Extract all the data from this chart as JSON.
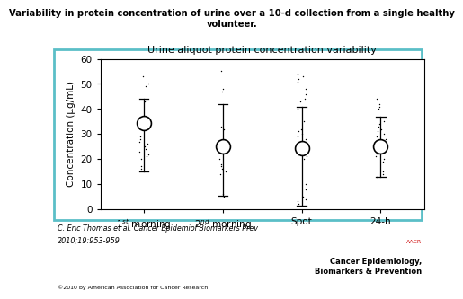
{
  "title": "Variability in protein concentration of urine over a 10-d collection from a single healthy\nvolunteer.",
  "inner_title": "Urine aliquot protein concentration variability",
  "ylabel": "Concentration (μg/mL)",
  "categories": [
    "1$^{st}$ morning",
    "2$^{nd}$ morning",
    "Spot",
    "24-h"
  ],
  "ylim": [
    0,
    60
  ],
  "yticks": [
    0,
    10,
    20,
    30,
    40,
    50,
    60
  ],
  "means": [
    34.5,
    25.0,
    24.5,
    25.0
  ],
  "error_top": [
    44.0,
    42.0,
    41.0,
    37.0
  ],
  "error_bot": [
    15.0,
    5.5,
    1.5,
    13.0
  ],
  "scatter_data": {
    "1st": [
      53,
      50,
      49,
      43,
      29,
      28,
      27,
      26,
      25,
      24,
      23,
      22,
      21,
      20,
      17,
      16
    ],
    "2nd": [
      55,
      48,
      47,
      33,
      32,
      20,
      18,
      17,
      16,
      15,
      14,
      6,
      5
    ],
    "spot": [
      54,
      53,
      52,
      51,
      48,
      46,
      44,
      43,
      40,
      35,
      32,
      31,
      30,
      29,
      28,
      27,
      26,
      25,
      24,
      23,
      22,
      21,
      20,
      10,
      8,
      5,
      4,
      3,
      2
    ],
    "24h": [
      44,
      42,
      41,
      40,
      35,
      34,
      33,
      32,
      31,
      30,
      29,
      28,
      27,
      22,
      21,
      20,
      19,
      15,
      14,
      13
    ]
  },
  "outer_box_color": "#5bbfc7",
  "citation_line1": "C. Eric Thomas et al. Cancer Epidemiol Biomarkers Prev",
  "citation_line2": "2010;19:953-959",
  "copyright": "©2010 by American Association for Cancer Research",
  "journal_name": "Cancer Epidemiology,\nBiomarkers & Prevention",
  "aacr_text": "AACR"
}
